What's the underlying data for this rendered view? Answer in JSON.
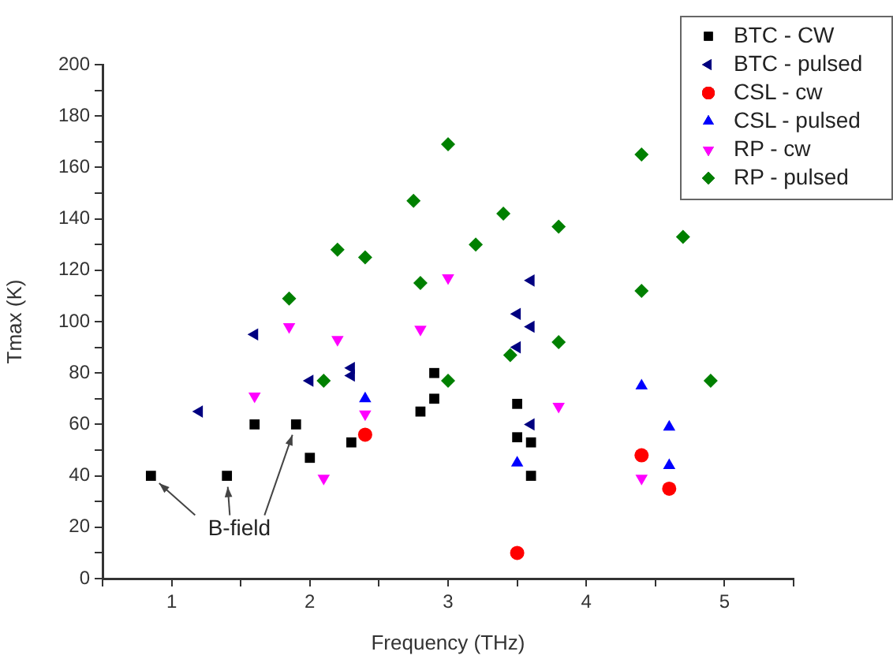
{
  "chart_data": {
    "type": "scatter",
    "xlabel": "Frequency (THz)",
    "ylabel": "Tmax (K)",
    "xlim": [
      0.5,
      5.5
    ],
    "xticks": [
      {
        "value": 0.5,
        "label": null
      },
      1,
      {
        "value": 1.5,
        "label": null
      },
      2,
      {
        "value": 2.5,
        "label": null
      },
      3,
      {
        "value": 3.5,
        "label": null
      },
      4,
      {
        "value": 4.5,
        "label": null
      },
      5,
      {
        "value": 5.5,
        "label": null
      }
    ],
    "ylim": [
      0,
      200
    ],
    "yticks": [
      0,
      {
        "value": 10,
        "label": null
      },
      20,
      {
        "value": 30,
        "label": null
      },
      40,
      {
        "value": 50,
        "label": null
      },
      60,
      {
        "value": 70,
        "label": null
      },
      80,
      {
        "value": 90,
        "label": null
      },
      100,
      {
        "value": 110,
        "label": null
      },
      120,
      {
        "value": 130,
        "label": null
      },
      140,
      {
        "value": 150,
        "label": null
      },
      160,
      {
        "value": 170,
        "label": null
      },
      180,
      {
        "value": 190,
        "label": null
      },
      200
    ],
    "grid": false,
    "legend": "top right",
    "annotations": [
      {
        "text": "B-field",
        "x": 0.85,
        "y": 40
      }
    ],
    "series": [
      {
        "name": "BTC - CW",
        "color": "#000000",
        "marker": "square",
        "x": [
          0.85,
          1.4,
          1.6,
          1.9,
          2.0,
          2.3,
          2.8,
          2.9,
          2.9,
          3.5,
          3.5,
          3.6,
          3.6
        ],
        "values": [
          40,
          40,
          60,
          60,
          47,
          53,
          65,
          70,
          80,
          68,
          55,
          53,
          40
        ]
      },
      {
        "name": "BTC - pulsed",
        "color": "#000080",
        "marker": "triangle-left",
        "x": [
          1.2,
          1.6,
          2.0,
          2.3,
          2.3,
          3.5,
          3.6,
          3.5,
          3.6,
          3.6
        ],
        "values": [
          65,
          95,
          77,
          82,
          79,
          103,
          116,
          90,
          98,
          60
        ]
      },
      {
        "name": "CSL - cw",
        "color": "#ff0000",
        "marker": "circle",
        "x": [
          2.4,
          3.5,
          4.4,
          4.6
        ],
        "values": [
          56,
          10,
          48,
          35
        ]
      },
      {
        "name": "CSL - pulsed",
        "color": "#0000ff",
        "marker": "triangle",
        "x": [
          2.4,
          3.5,
          4.4,
          4.6,
          4.6
        ],
        "values": [
          70,
          45,
          75,
          59,
          44
        ]
      },
      {
        "name": "RP - cw",
        "color": "#ff00ff",
        "marker": "triangle-down",
        "x": [
          1.6,
          1.85,
          2.1,
          2.2,
          2.4,
          2.8,
          3.0,
          3.8,
          4.4
        ],
        "values": [
          71,
          98,
          39,
          93,
          64,
          97,
          117,
          67,
          39
        ]
      },
      {
        "name": "RP - pulsed",
        "color": "#008000",
        "marker": "diamond",
        "x": [
          1.85,
          2.1,
          2.2,
          2.4,
          2.75,
          2.8,
          3.0,
          3.0,
          3.2,
          3.4,
          3.45,
          3.8,
          3.8,
          4.4,
          4.4,
          4.7,
          4.9
        ],
        "values": [
          109,
          77,
          128,
          125,
          147,
          115,
          169,
          77,
          130,
          142,
          87,
          137,
          92,
          165,
          112,
          133,
          77
        ]
      }
    ]
  }
}
